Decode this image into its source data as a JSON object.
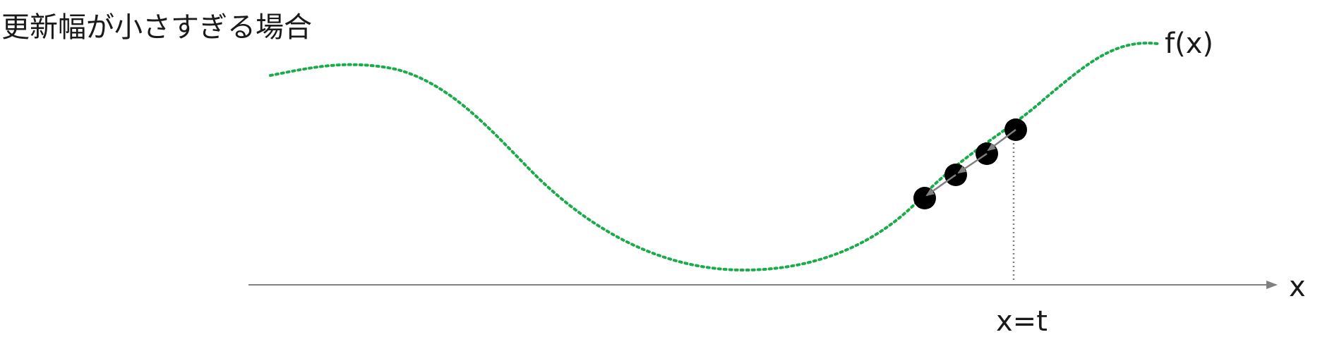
{
  "title": "更新幅が小さすぎる場合",
  "curve_label": "f(x)",
  "axis_label": "x",
  "marker_label": "x=t",
  "colors": {
    "curve": "#1aab4a",
    "axis": "#808080",
    "points": "#000000",
    "arrows": "#808080",
    "guide": "#808080"
  }
}
